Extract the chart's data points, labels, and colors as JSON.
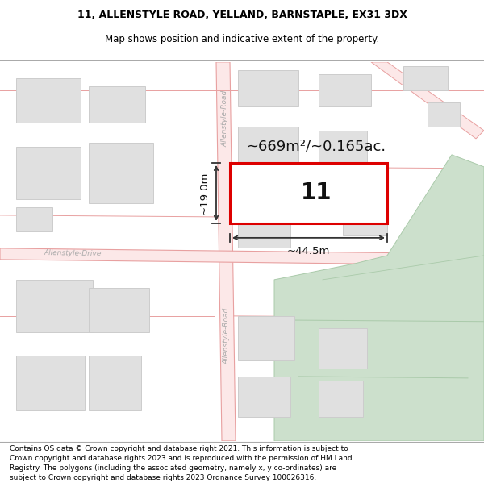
{
  "title_line1": "11, ALLENSTYLE ROAD, YELLAND, BARNSTAPLE, EX31 3DX",
  "title_line2": "Map shows position and indicative extent of the property.",
  "footer_text": "Contains OS data © Crown copyright and database right 2021. This information is subject to Crown copyright and database rights 2023 and is reproduced with the permission of HM Land Registry. The polygons (including the associated geometry, namely x, y co-ordinates) are subject to Crown copyright and database rights 2023 Ordnance Survey 100026316.",
  "area_label": "~669m²/~0.165ac.",
  "property_number": "11",
  "dim_width": "~44.5m",
  "dim_height": "~19.0m",
  "road_label_v1": "Allenstyle-Road",
  "road_label_v2": "Allenstyle-Road",
  "road_label_h": "Allenstyle-Drive",
  "map_bg": "#ffffff",
  "road_color": "#f0b0b0",
  "road_line_color": "#e8a0a0",
  "building_fill": "#e0e0e0",
  "building_edge": "#cccccc",
  "green_fill": "#cce0cc",
  "green_edge": "#aacaaa",
  "property_edge": "#dd0000",
  "property_fill": "#ffffff",
  "title_fontsize": 9,
  "footer_fontsize": 6.5
}
